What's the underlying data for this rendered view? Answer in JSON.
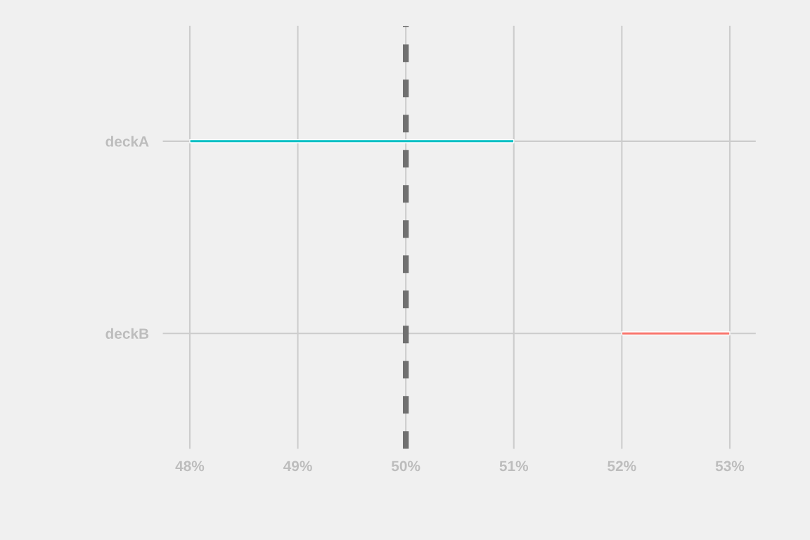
{
  "chart_data": {
    "type": "bar",
    "orientation": "horizontal",
    "categories": [
      "deckA",
      "deckB"
    ],
    "values": [
      3,
      1
    ],
    "base": [
      48,
      52
    ],
    "colors": [
      "#00bfc4",
      "#f8766d"
    ],
    "xlim": [
      47.75,
      53.24
    ],
    "xticks": [
      {
        "value": 48,
        "label": "48%"
      },
      {
        "value": 49,
        "label": "49%"
      },
      {
        "value": 50,
        "label": "50%"
      },
      {
        "value": 51,
        "label": "51%"
      },
      {
        "value": 52,
        "label": "52%"
      },
      {
        "value": 53,
        "label": "53%"
      }
    ],
    "ref_lines": [
      {
        "axis": "x",
        "value": 50,
        "color": "#707070",
        "line_style": "dashed"
      }
    ],
    "grid": true
  }
}
